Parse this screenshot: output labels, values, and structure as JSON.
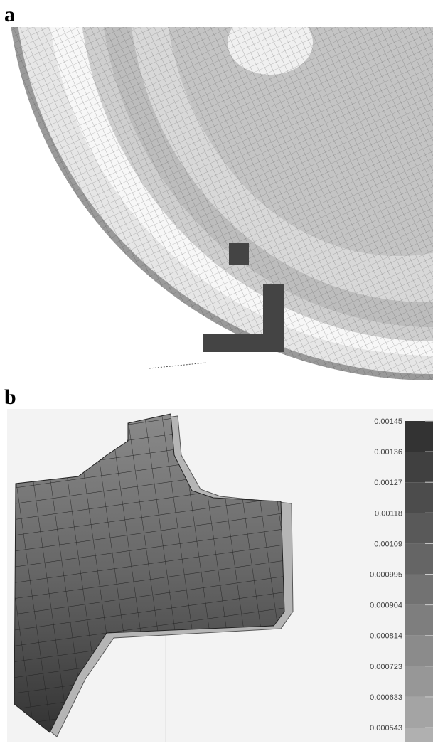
{
  "panels": [
    {
      "label": "a"
    },
    {
      "label": "b"
    }
  ],
  "legend": {
    "labels": [
      "0.00145",
      "0.00136",
      "0.00127",
      "0.00118",
      "0.00109",
      "0.000995",
      "0.000904",
      "0.000814",
      "0.000723",
      "0.000633",
      "0.000543"
    ]
  }
}
